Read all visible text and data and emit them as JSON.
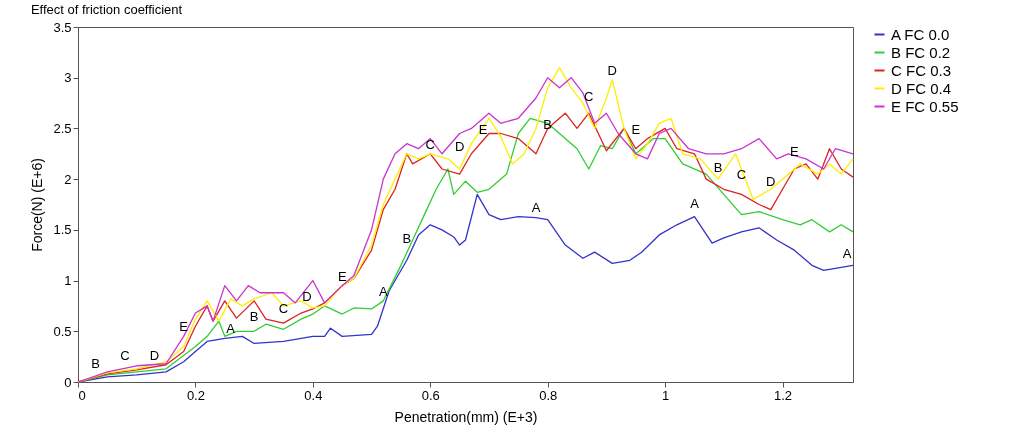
{
  "chart_data": {
    "type": "line",
    "title": "Effect of friction coefficient",
    "xlabel": "Penetration(mm) (E+3)",
    "ylabel": "Force(N) (E+6)",
    "xlim": [
      0,
      1.32
    ],
    "ylim": [
      0,
      3.5
    ],
    "xticks": [
      0,
      0.2,
      0.4,
      0.6,
      0.8,
      1,
      1.2
    ],
    "yticks": [
      0,
      0.5,
      1,
      1.5,
      2,
      2.5,
      3,
      3.5
    ],
    "legend": "right",
    "series": [
      {
        "name": "A FC 0.0",
        "color": "#3333cc",
        "x": [
          0,
          0.05,
          0.1,
          0.15,
          0.18,
          0.2,
          0.22,
          0.25,
          0.28,
          0.3,
          0.35,
          0.4,
          0.42,
          0.43,
          0.45,
          0.5,
          0.51,
          0.53,
          0.56,
          0.58,
          0.6,
          0.62,
          0.64,
          0.65,
          0.66,
          0.68,
          0.7,
          0.72,
          0.75,
          0.78,
          0.8,
          0.83,
          0.86,
          0.88,
          0.91,
          0.94,
          0.96,
          0.99,
          1.02,
          1.05,
          1.08,
          1.1,
          1.13,
          1.16,
          1.19,
          1.22,
          1.25,
          1.27,
          1.3,
          1.32
        ],
        "values": [
          0,
          0.05,
          0.07,
          0.1,
          0.2,
          0.3,
          0.4,
          0.43,
          0.45,
          0.38,
          0.4,
          0.45,
          0.45,
          0.53,
          0.45,
          0.47,
          0.55,
          0.9,
          1.2,
          1.45,
          1.55,
          1.5,
          1.43,
          1.35,
          1.4,
          1.85,
          1.65,
          1.6,
          1.63,
          1.62,
          1.6,
          1.35,
          1.22,
          1.28,
          1.17,
          1.2,
          1.28,
          1.45,
          1.55,
          1.63,
          1.37,
          1.42,
          1.48,
          1.52,
          1.4,
          1.3,
          1.15,
          1.1,
          1.13,
          1.15
        ]
      },
      {
        "name": "B FC 0.2",
        "color": "#33cc33",
        "x": [
          0,
          0.05,
          0.1,
          0.15,
          0.2,
          0.22,
          0.24,
          0.25,
          0.27,
          0.3,
          0.32,
          0.35,
          0.38,
          0.4,
          0.42,
          0.45,
          0.47,
          0.5,
          0.52,
          0.55,
          0.57,
          0.59,
          0.61,
          0.63,
          0.64,
          0.66,
          0.68,
          0.7,
          0.73,
          0.75,
          0.77,
          0.8,
          0.82,
          0.85,
          0.87,
          0.89,
          0.91,
          0.93,
          0.95,
          0.96,
          0.98,
          1.0,
          1.03,
          1.07,
          1.1,
          1.13,
          1.16,
          1.2,
          1.23,
          1.25,
          1.28,
          1.3,
          1.32
        ],
        "values": [
          0,
          0.07,
          0.1,
          0.13,
          0.35,
          0.45,
          0.6,
          0.45,
          0.5,
          0.5,
          0.57,
          0.52,
          0.62,
          0.67,
          0.75,
          0.67,
          0.73,
          0.72,
          0.8,
          1.15,
          1.4,
          1.65,
          1.9,
          2.1,
          1.85,
          1.98,
          1.87,
          1.9,
          2.05,
          2.45,
          2.6,
          2.55,
          2.45,
          2.3,
          2.1,
          2.33,
          2.3,
          2.5,
          2.25,
          2.3,
          2.4,
          2.4,
          2.15,
          2.05,
          1.85,
          1.65,
          1.68,
          1.6,
          1.55,
          1.6,
          1.48,
          1.55,
          1.48
        ]
      },
      {
        "name": "C FC 0.3",
        "color": "#dd2222",
        "x": [
          0,
          0.05,
          0.1,
          0.15,
          0.18,
          0.2,
          0.22,
          0.23,
          0.25,
          0.27,
          0.3,
          0.32,
          0.35,
          0.38,
          0.4,
          0.42,
          0.45,
          0.47,
          0.5,
          0.52,
          0.54,
          0.56,
          0.57,
          0.6,
          0.62,
          0.65,
          0.67,
          0.7,
          0.72,
          0.75,
          0.78,
          0.8,
          0.83,
          0.85,
          0.87,
          0.9,
          0.93,
          0.95,
          0.97,
          1.0,
          1.02,
          1.05,
          1.07,
          1.1,
          1.13,
          1.16,
          1.18,
          1.2,
          1.22,
          1.24,
          1.26,
          1.28,
          1.3,
          1.32
        ],
        "values": [
          0,
          0.08,
          0.12,
          0.17,
          0.3,
          0.55,
          0.75,
          0.6,
          0.8,
          0.63,
          0.8,
          0.62,
          0.58,
          0.68,
          0.72,
          0.78,
          0.95,
          1.02,
          1.3,
          1.7,
          1.9,
          2.25,
          2.15,
          2.25,
          2.1,
          2.05,
          2.25,
          2.45,
          2.45,
          2.4,
          2.25,
          2.5,
          2.65,
          2.5,
          2.65,
          2.28,
          2.5,
          2.3,
          2.4,
          2.5,
          2.3,
          2.25,
          2.0,
          1.9,
          1.85,
          1.75,
          1.7,
          1.9,
          2.1,
          2.15,
          2.0,
          2.3,
          2.1,
          2.02
        ]
      },
      {
        "name": "D FC 0.4",
        "color": "#ffee00",
        "x": [
          0,
          0.05,
          0.1,
          0.15,
          0.18,
          0.2,
          0.22,
          0.24,
          0.26,
          0.28,
          0.3,
          0.33,
          0.35,
          0.38,
          0.4,
          0.42,
          0.45,
          0.47,
          0.5,
          0.52,
          0.54,
          0.56,
          0.58,
          0.6,
          0.63,
          0.65,
          0.67,
          0.7,
          0.72,
          0.74,
          0.76,
          0.78,
          0.8,
          0.82,
          0.84,
          0.86,
          0.88,
          0.9,
          0.91,
          0.93,
          0.95,
          0.97,
          0.99,
          1.01,
          1.03,
          1.06,
          1.09,
          1.12,
          1.15,
          1.18,
          1.2,
          1.23,
          1.26,
          1.28,
          1.3,
          1.32
        ],
        "values": [
          0,
          0.09,
          0.13,
          0.2,
          0.35,
          0.62,
          0.8,
          0.6,
          0.82,
          0.75,
          0.82,
          0.88,
          0.75,
          0.8,
          0.73,
          0.75,
          0.95,
          1.02,
          1.35,
          1.75,
          2.0,
          2.25,
          2.2,
          2.25,
          2.2,
          2.1,
          2.35,
          2.6,
          2.42,
          2.15,
          2.25,
          2.5,
          2.9,
          3.1,
          2.9,
          2.75,
          2.5,
          2.8,
          2.98,
          2.5,
          2.2,
          2.35,
          2.55,
          2.6,
          2.25,
          2.2,
          2.0,
          2.25,
          1.8,
          1.9,
          2.0,
          2.15,
          2.05,
          2.15,
          2.05,
          2.2
        ]
      },
      {
        "name": "E FC 0.55",
        "color": "#cc33cc",
        "x": [
          0,
          0.05,
          0.1,
          0.15,
          0.18,
          0.2,
          0.22,
          0.23,
          0.25,
          0.27,
          0.29,
          0.31,
          0.35,
          0.37,
          0.4,
          0.42,
          0.45,
          0.47,
          0.5,
          0.52,
          0.54,
          0.56,
          0.58,
          0.6,
          0.62,
          0.65,
          0.67,
          0.7,
          0.72,
          0.75,
          0.78,
          0.8,
          0.82,
          0.84,
          0.86,
          0.88,
          0.9,
          0.92,
          0.95,
          0.97,
          0.99,
          1.01,
          1.04,
          1.07,
          1.1,
          1.13,
          1.16,
          1.19,
          1.21,
          1.24,
          1.27,
          1.29,
          1.32
        ],
        "values": [
          0,
          0.1,
          0.16,
          0.18,
          0.45,
          0.68,
          0.75,
          0.6,
          0.95,
          0.8,
          0.95,
          0.88,
          0.88,
          0.78,
          1.0,
          0.78,
          0.95,
          1.05,
          1.5,
          2.0,
          2.25,
          2.35,
          2.3,
          2.4,
          2.25,
          2.45,
          2.5,
          2.65,
          2.55,
          2.6,
          2.8,
          3.0,
          2.9,
          3.0,
          2.85,
          2.55,
          2.65,
          2.45,
          2.25,
          2.2,
          2.45,
          2.5,
          2.3,
          2.25,
          2.25,
          2.3,
          2.4,
          2.2,
          2.25,
          2.2,
          2.1,
          2.3,
          2.25
        ]
      }
    ],
    "annotations": [
      {
        "text": "A",
        "x": 0.26,
        "y": 0.43
      },
      {
        "text": "A",
        "x": 0.52,
        "y": 0.8
      },
      {
        "text": "A",
        "x": 0.78,
        "y": 1.63
      },
      {
        "text": "A",
        "x": 1.05,
        "y": 1.67
      },
      {
        "text": "A",
        "x": 1.31,
        "y": 1.17
      },
      {
        "text": "B",
        "x": 0.03,
        "y": 0.09
      },
      {
        "text": "B",
        "x": 0.3,
        "y": 0.55
      },
      {
        "text": "B",
        "x": 0.56,
        "y": 1.32
      },
      {
        "text": "B",
        "x": 0.8,
        "y": 2.45
      },
      {
        "text": "B",
        "x": 1.09,
        "y": 2.02
      },
      {
        "text": "C",
        "x": 0.08,
        "y": 0.17
      },
      {
        "text": "C",
        "x": 0.35,
        "y": 0.63
      },
      {
        "text": "C",
        "x": 0.6,
        "y": 2.25
      },
      {
        "text": "C",
        "x": 0.87,
        "y": 2.72
      },
      {
        "text": "C",
        "x": 1.13,
        "y": 1.95
      },
      {
        "text": "D",
        "x": 0.13,
        "y": 0.17
      },
      {
        "text": "D",
        "x": 0.39,
        "y": 0.75
      },
      {
        "text": "D",
        "x": 0.65,
        "y": 2.23
      },
      {
        "text": "D",
        "x": 0.91,
        "y": 2.98
      },
      {
        "text": "D",
        "x": 1.18,
        "y": 1.88
      },
      {
        "text": "E",
        "x": 0.18,
        "y": 0.45
      },
      {
        "text": "E",
        "x": 0.45,
        "y": 0.95
      },
      {
        "text": "E",
        "x": 0.69,
        "y": 2.4
      },
      {
        "text": "E",
        "x": 0.95,
        "y": 2.4
      },
      {
        "text": "E",
        "x": 1.22,
        "y": 2.18
      }
    ]
  }
}
